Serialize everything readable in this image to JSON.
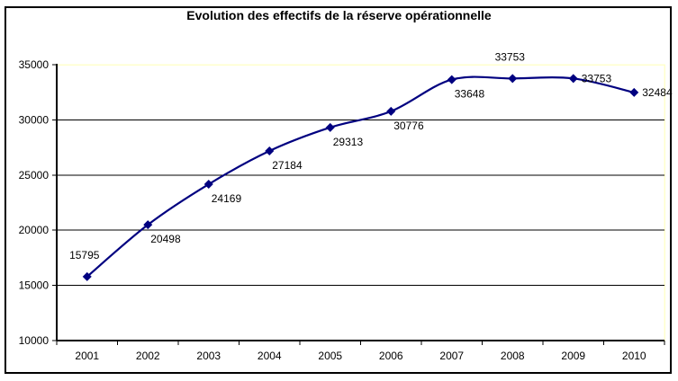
{
  "window": {
    "background": "#FFFFFF",
    "border_color": "#000000"
  },
  "chart_data": {
    "type": "line",
    "title": "Evolution des effectifs de la réserve opérationnelle",
    "categories": [
      "2001",
      "2002",
      "2003",
      "2004",
      "2005",
      "2006",
      "2007",
      "2008",
      "2009",
      "2010"
    ],
    "values": [
      15795,
      20498,
      24169,
      27184,
      29313,
      30776,
      33648,
      33753,
      33753,
      32484
    ],
    "data_labels": [
      "15795",
      "20498",
      "24169",
      "27184",
      "29313",
      "30776",
      "33648",
      "33753",
      "33753",
      "32484"
    ],
    "label_positions": [
      "above",
      "below-right",
      "below-right",
      "below-right",
      "below-right",
      "below-right",
      "below-right",
      "above",
      "right",
      "right"
    ],
    "xlabel": "",
    "ylabel": "",
    "ylim": [
      10000,
      35000
    ],
    "y_ticks": [
      10000,
      15000,
      20000,
      25000,
      30000,
      35000
    ],
    "grid": true,
    "smoothed": true,
    "legend": "none",
    "marker": "diamond",
    "colors": {
      "series": "#000080",
      "gridline": "#000000",
      "axis": "#000000",
      "plot_border": "#FFFFCC",
      "text": "#000000",
      "background": "#FFFFFF"
    }
  }
}
